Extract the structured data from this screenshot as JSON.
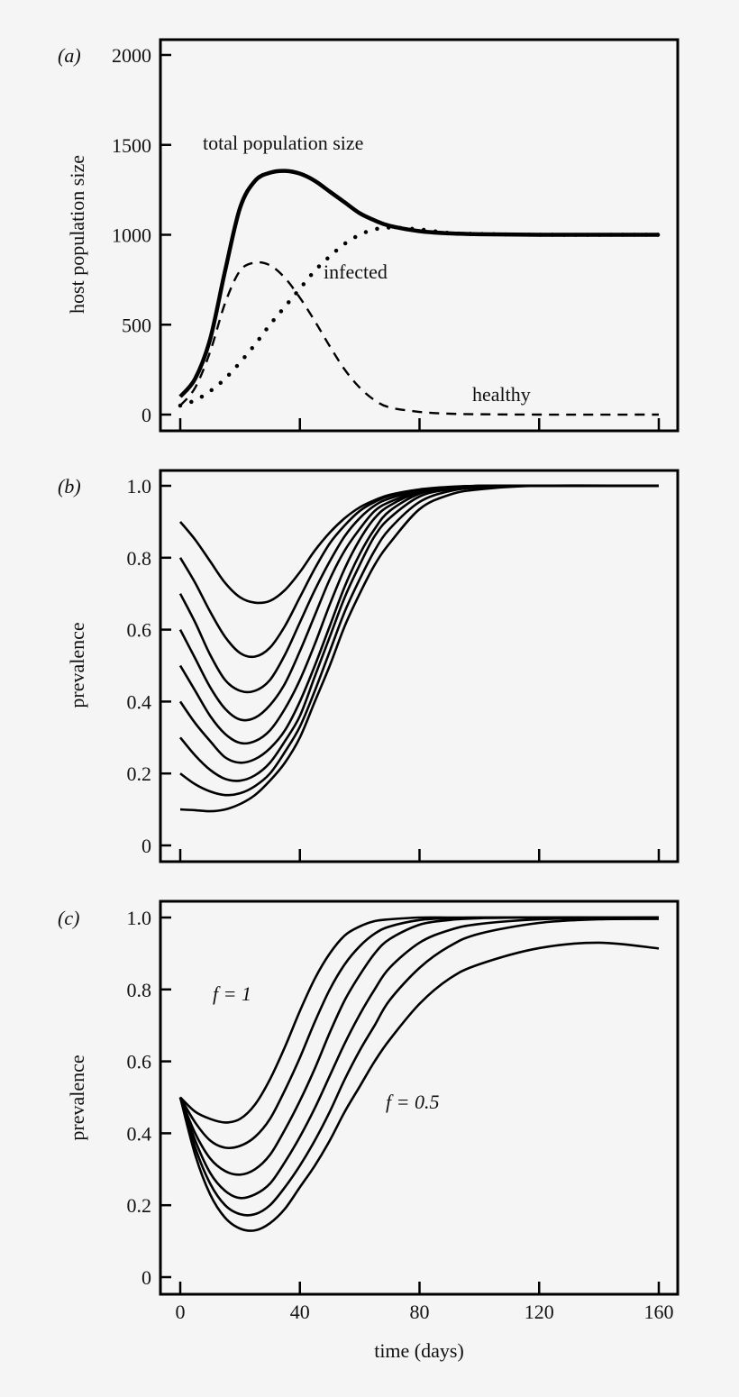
{
  "chart_data": [
    {
      "type": "line",
      "panel_label": "(a)",
      "xlabel": "",
      "ylabel": "host population size",
      "xlim": [
        0,
        160
      ],
      "ylim": [
        0,
        2000
      ],
      "xticks": [
        "0",
        "40",
        "80",
        "120",
        "160"
      ],
      "yticks": [
        "0",
        "500",
        "1000",
        "1500",
        "2000"
      ],
      "grid": false,
      "x": [
        0,
        5,
        10,
        15,
        20,
        25,
        30,
        35,
        40,
        45,
        50,
        55,
        60,
        65,
        70,
        80,
        90,
        100,
        120,
        160
      ],
      "series": [
        {
          "label": "total population size",
          "style": "solid-thick",
          "values": [
            100,
            200,
            420,
            800,
            1150,
            1300,
            1345,
            1355,
            1340,
            1300,
            1240,
            1180,
            1120,
            1080,
            1050,
            1020,
            1008,
            1003,
            1000,
            1000
          ]
        },
        {
          "label": "healthy",
          "style": "dashed",
          "values": [
            50,
            150,
            350,
            620,
            800,
            845,
            830,
            760,
            650,
            520,
            380,
            250,
            150,
            80,
            40,
            15,
            5,
            2,
            0,
            0
          ]
        },
        {
          "label": "infected",
          "style": "dotted",
          "values": [
            50,
            80,
            130,
            200,
            290,
            390,
            500,
            600,
            700,
            800,
            880,
            950,
            1000,
            1030,
            1040,
            1030,
            1010,
            1005,
            1000,
            1000
          ]
        }
      ]
    },
    {
      "type": "line",
      "panel_label": "(b)",
      "xlabel": "",
      "ylabel": "prevalence",
      "xlim": [
        0,
        160
      ],
      "ylim": [
        0,
        1.0
      ],
      "xticks": [
        "0",
        "40",
        "80",
        "120",
        "160"
      ],
      "yticks": [
        "0",
        "0.2",
        "0.4",
        "0.6",
        "0.8",
        "1.0"
      ],
      "grid": false,
      "x": [
        0,
        5,
        10,
        15,
        20,
        25,
        30,
        35,
        40,
        45,
        50,
        55,
        60,
        65,
        70,
        80,
        90,
        100,
        120,
        160
      ],
      "series": [
        {
          "values": [
            0.9,
            0.85,
            0.79,
            0.73,
            0.69,
            0.675,
            0.68,
            0.71,
            0.76,
            0.82,
            0.87,
            0.91,
            0.94,
            0.96,
            0.975,
            0.99,
            0.997,
            1,
            1,
            1
          ]
        },
        {
          "values": [
            0.8,
            0.73,
            0.65,
            0.58,
            0.535,
            0.525,
            0.55,
            0.61,
            0.69,
            0.77,
            0.84,
            0.89,
            0.93,
            0.955,
            0.972,
            0.989,
            0.996,
            1,
            1,
            1
          ]
        },
        {
          "values": [
            0.7,
            0.62,
            0.53,
            0.46,
            0.43,
            0.43,
            0.46,
            0.53,
            0.62,
            0.71,
            0.79,
            0.86,
            0.91,
            0.945,
            0.965,
            0.987,
            0.996,
            1,
            1,
            1
          ]
        },
        {
          "values": [
            0.6,
            0.52,
            0.44,
            0.38,
            0.35,
            0.355,
            0.39,
            0.45,
            0.54,
            0.64,
            0.74,
            0.82,
            0.88,
            0.93,
            0.955,
            0.985,
            0.995,
            1,
            1,
            1
          ]
        },
        {
          "values": [
            0.5,
            0.43,
            0.36,
            0.31,
            0.285,
            0.29,
            0.32,
            0.38,
            0.46,
            0.56,
            0.67,
            0.77,
            0.85,
            0.91,
            0.945,
            0.982,
            0.994,
            0.999,
            1,
            1
          ]
        },
        {
          "values": [
            0.4,
            0.34,
            0.29,
            0.245,
            0.23,
            0.24,
            0.27,
            0.32,
            0.4,
            0.5,
            0.61,
            0.72,
            0.81,
            0.88,
            0.93,
            0.978,
            0.993,
            0.998,
            1,
            1
          ]
        },
        {
          "values": [
            0.3,
            0.25,
            0.21,
            0.185,
            0.18,
            0.195,
            0.23,
            0.29,
            0.36,
            0.47,
            0.58,
            0.69,
            0.78,
            0.86,
            0.91,
            0.97,
            0.99,
            0.997,
            1,
            1
          ]
        },
        {
          "values": [
            0.2,
            0.17,
            0.15,
            0.14,
            0.145,
            0.165,
            0.2,
            0.26,
            0.33,
            0.43,
            0.54,
            0.65,
            0.74,
            0.82,
            0.88,
            0.955,
            0.985,
            0.995,
            1,
            1
          ]
        },
        {
          "values": [
            0.1,
            0.098,
            0.095,
            0.1,
            0.115,
            0.14,
            0.18,
            0.23,
            0.3,
            0.4,
            0.5,
            0.61,
            0.7,
            0.78,
            0.84,
            0.935,
            0.975,
            0.99,
            1,
            1
          ]
        }
      ]
    },
    {
      "type": "line",
      "panel_label": "(c)",
      "xlabel": "time (days)",
      "ylabel": "prevalence",
      "xlim": [
        0,
        160
      ],
      "ylim": [
        0,
        1.0
      ],
      "xticks": [
        "0",
        "40",
        "80",
        "120",
        "160"
      ],
      "yticks": [
        "0",
        "0.2",
        "0.4",
        "0.6",
        "0.8",
        "1.0"
      ],
      "grid": false,
      "annotations": [
        "f = 1",
        "f = 0.5"
      ],
      "x": [
        0,
        5,
        10,
        15,
        20,
        25,
        30,
        35,
        40,
        45,
        50,
        55,
        60,
        65,
        70,
        80,
        90,
        100,
        120,
        140,
        160
      ],
      "series": [
        {
          "values": [
            0.5,
            0.46,
            0.44,
            0.43,
            0.44,
            0.48,
            0.55,
            0.64,
            0.74,
            0.83,
            0.9,
            0.95,
            0.975,
            0.99,
            0.995,
            1,
            1,
            1,
            1,
            1,
            1
          ]
        },
        {
          "values": [
            0.5,
            0.43,
            0.38,
            0.36,
            0.365,
            0.39,
            0.44,
            0.52,
            0.61,
            0.71,
            0.8,
            0.87,
            0.92,
            0.955,
            0.975,
            0.993,
            0.998,
            1,
            1,
            1,
            1
          ]
        },
        {
          "values": [
            0.5,
            0.4,
            0.33,
            0.295,
            0.285,
            0.3,
            0.34,
            0.41,
            0.49,
            0.58,
            0.68,
            0.77,
            0.84,
            0.9,
            0.94,
            0.98,
            0.993,
            0.998,
            1,
            1,
            1
          ]
        },
        {
          "values": [
            0.5,
            0.38,
            0.29,
            0.24,
            0.22,
            0.23,
            0.26,
            0.32,
            0.39,
            0.47,
            0.56,
            0.65,
            0.73,
            0.8,
            0.86,
            0.93,
            0.965,
            0.982,
            0.995,
            0.998,
            1
          ]
        },
        {
          "values": [
            0.5,
            0.36,
            0.26,
            0.2,
            0.175,
            0.175,
            0.2,
            0.25,
            0.31,
            0.38,
            0.46,
            0.55,
            0.63,
            0.7,
            0.77,
            0.86,
            0.92,
            0.955,
            0.985,
            0.995,
            0.996
          ]
        },
        {
          "values": [
            0.5,
            0.34,
            0.23,
            0.165,
            0.135,
            0.13,
            0.15,
            0.19,
            0.25,
            0.31,
            0.38,
            0.46,
            0.53,
            0.6,
            0.66,
            0.76,
            0.83,
            0.87,
            0.915,
            0.93,
            0.914
          ]
        }
      ]
    }
  ]
}
